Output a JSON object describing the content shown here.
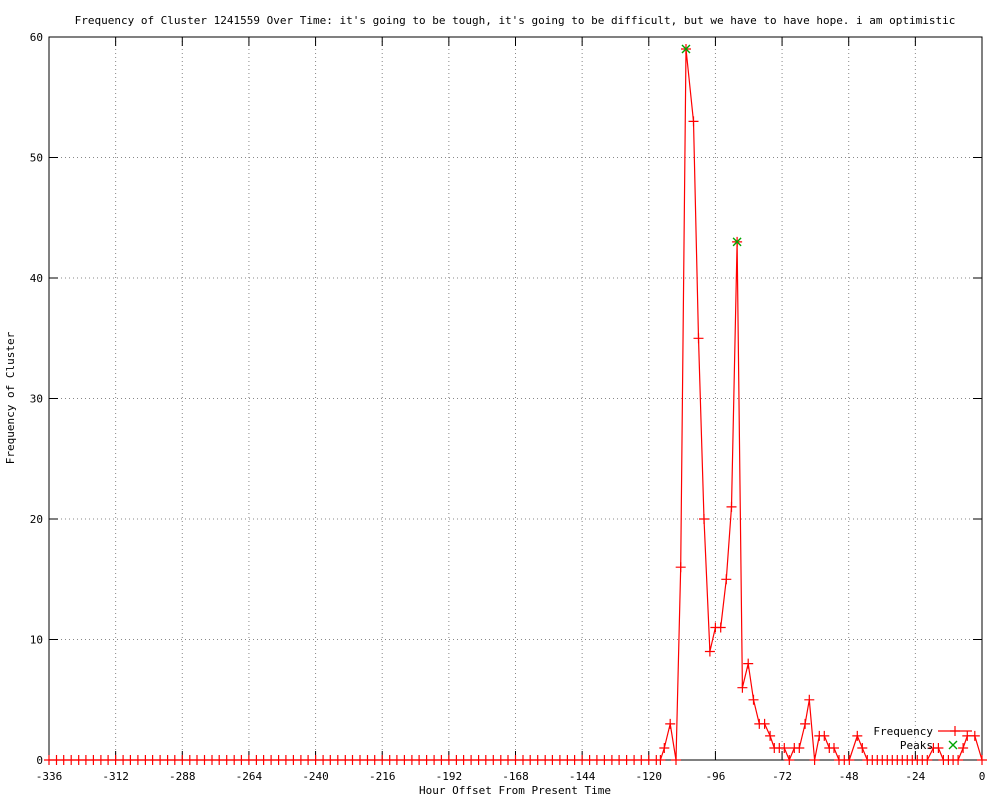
{
  "chart_data": {
    "type": "line",
    "title": "Frequency of Cluster 1241559 Over Time: it's going to be tough, it's going to be difficult, but we have to have hope. i am optimistic",
    "xlabel": "Hour Offset From Present Time",
    "ylabel": "Frequency of Cluster",
    "xlim": [
      -336,
      0
    ],
    "ylim": [
      0,
      60
    ],
    "xticks": [
      -336,
      -312,
      -288,
      -264,
      -240,
      -216,
      -192,
      -168,
      -144,
      -120,
      -96,
      -72,
      -48,
      -24,
      0
    ],
    "yticks": [
      0,
      10,
      20,
      30,
      40,
      50,
      60
    ],
    "grid": true,
    "legend_position": "bottom-right",
    "background": "#ffffff",
    "grid_color": "#888888",
    "frame_color": "#000000",
    "series": [
      {
        "name": "Frequency",
        "color": "#ff0000",
        "marker": "+",
        "style": "linespoints",
        "points": [
          [
            -336,
            0
          ],
          [
            -333.3,
            0
          ],
          [
            -330.7,
            0
          ],
          [
            -328,
            0
          ],
          [
            -325.3,
            0
          ],
          [
            -322.7,
            0
          ],
          [
            -320,
            0
          ],
          [
            -317.3,
            0
          ],
          [
            -314.7,
            0
          ],
          [
            -312,
            0
          ],
          [
            -309.3,
            0
          ],
          [
            -306.7,
            0
          ],
          [
            -304,
            0
          ],
          [
            -301.3,
            0
          ],
          [
            -298.7,
            0
          ],
          [
            -296,
            0
          ],
          [
            -293.3,
            0
          ],
          [
            -290.7,
            0
          ],
          [
            -288,
            0
          ],
          [
            -285.3,
            0
          ],
          [
            -282.7,
            0
          ],
          [
            -280,
            0
          ],
          [
            -277.3,
            0
          ],
          [
            -274.7,
            0
          ],
          [
            -272,
            0
          ],
          [
            -269.3,
            0
          ],
          [
            -266.7,
            0
          ],
          [
            -264,
            0
          ],
          [
            -261.3,
            0
          ],
          [
            -258.7,
            0
          ],
          [
            -256,
            0
          ],
          [
            -253.3,
            0
          ],
          [
            -250.7,
            0
          ],
          [
            -248,
            0
          ],
          [
            -245.3,
            0
          ],
          [
            -242.7,
            0
          ],
          [
            -240,
            0
          ],
          [
            -237.3,
            0
          ],
          [
            -234.7,
            0
          ],
          [
            -232,
            0
          ],
          [
            -229.3,
            0
          ],
          [
            -226.7,
            0
          ],
          [
            -224,
            0
          ],
          [
            -221.3,
            0
          ],
          [
            -218.7,
            0
          ],
          [
            -216,
            0
          ],
          [
            -213.3,
            0
          ],
          [
            -210.7,
            0
          ],
          [
            -208,
            0
          ],
          [
            -205.3,
            0
          ],
          [
            -202.7,
            0
          ],
          [
            -200,
            0
          ],
          [
            -197.3,
            0
          ],
          [
            -194.7,
            0
          ],
          [
            -192,
            0
          ],
          [
            -189.3,
            0
          ],
          [
            -186.7,
            0
          ],
          [
            -184,
            0
          ],
          [
            -181.3,
            0
          ],
          [
            -178.7,
            0
          ],
          [
            -176,
            0
          ],
          [
            -173.3,
            0
          ],
          [
            -170.7,
            0
          ],
          [
            -168,
            0
          ],
          [
            -165.3,
            0
          ],
          [
            -162.7,
            0
          ],
          [
            -160,
            0
          ],
          [
            -157.3,
            0
          ],
          [
            -154.7,
            0
          ],
          [
            -152,
            0
          ],
          [
            -149.3,
            0
          ],
          [
            -146.7,
            0
          ],
          [
            -144,
            0
          ],
          [
            -141.3,
            0
          ],
          [
            -138.7,
            0
          ],
          [
            -136,
            0
          ],
          [
            -133.3,
            0
          ],
          [
            -130.7,
            0
          ],
          [
            -128,
            0
          ],
          [
            -125.3,
            0
          ],
          [
            -122.7,
            0
          ],
          [
            -120,
            0
          ],
          [
            -117.3,
            0
          ],
          [
            -115.8,
            0
          ],
          [
            -114.4,
            1
          ],
          [
            -112.3,
            3
          ],
          [
            -110.2,
            0
          ],
          [
            -108.5,
            16
          ],
          [
            -106.6,
            59
          ],
          [
            -103.9,
            53
          ],
          [
            -102.1,
            35
          ],
          [
            -100.1,
            20
          ],
          [
            -98,
            9
          ],
          [
            -96,
            11
          ],
          [
            -94.1,
            11
          ],
          [
            -92.1,
            15
          ],
          [
            -90.2,
            21
          ],
          [
            -88.2,
            43
          ],
          [
            -86.3,
            6
          ],
          [
            -84.2,
            8
          ],
          [
            -82.3,
            5
          ],
          [
            -80.2,
            3
          ],
          [
            -78.3,
            3
          ],
          [
            -76.3,
            2
          ],
          [
            -74.8,
            1
          ],
          [
            -73,
            1
          ],
          [
            -71.2,
            1
          ],
          [
            -69.4,
            0
          ],
          [
            -67.6,
            1
          ],
          [
            -65.8,
            1
          ],
          [
            -63.7,
            3
          ],
          [
            -62.2,
            5
          ],
          [
            -60.3,
            0
          ],
          [
            -58.6,
            2
          ],
          [
            -56.8,
            2
          ],
          [
            -55,
            1
          ],
          [
            -53.3,
            1
          ],
          [
            -51.5,
            0
          ],
          [
            -49.6,
            0
          ],
          [
            -47.8,
            0
          ],
          [
            -44.9,
            2
          ],
          [
            -43.1,
            1
          ],
          [
            -41.3,
            0
          ],
          [
            -39.5,
            0
          ],
          [
            -37.7,
            0
          ],
          [
            -35.9,
            0
          ],
          [
            -34.1,
            0
          ],
          [
            -32.3,
            0
          ],
          [
            -30.5,
            0
          ],
          [
            -28.7,
            0
          ],
          [
            -26.9,
            0
          ],
          [
            -25.1,
            0
          ],
          [
            -23.3,
            0
          ],
          [
            -21.5,
            0
          ],
          [
            -19.7,
            0
          ],
          [
            -17.5,
            1
          ],
          [
            -15.7,
            1
          ],
          [
            -13.9,
            0
          ],
          [
            -12.1,
            0
          ],
          [
            -10.4,
            0
          ],
          [
            -8.6,
            0
          ],
          [
            -6.8,
            1
          ],
          [
            -5.3,
            2
          ],
          [
            -2.6,
            2
          ],
          [
            0,
            0
          ]
        ]
      },
      {
        "name": "Peaks",
        "color": "#00a400",
        "marker": "x",
        "style": "points",
        "points": [
          [
            -106.6,
            59
          ],
          [
            -88.2,
            43
          ]
        ]
      }
    ]
  }
}
